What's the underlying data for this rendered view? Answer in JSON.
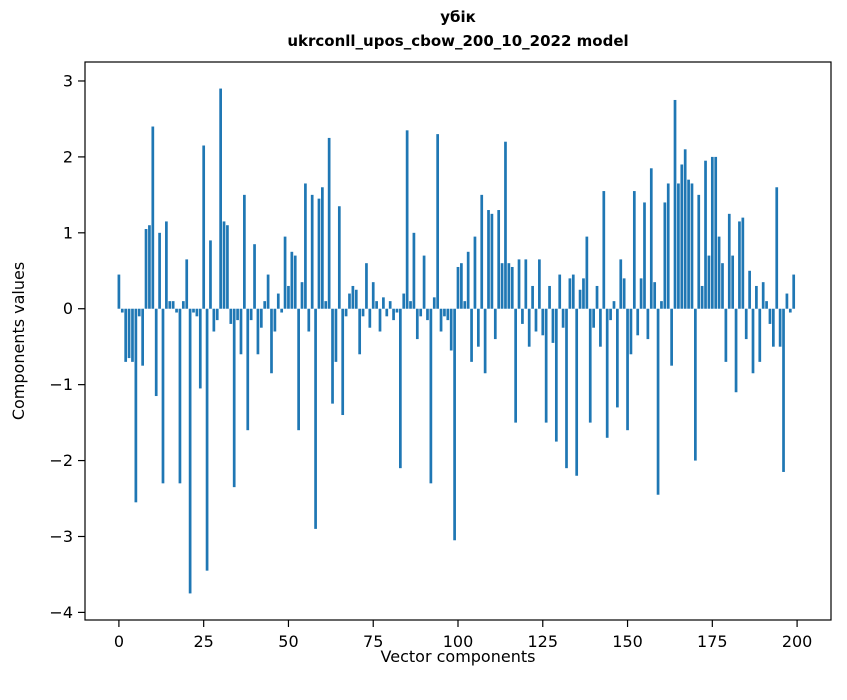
{
  "chart_data": {
    "type": "bar",
    "title": "убік",
    "subtitle": "ukrconll_upos_cbow_200_10_2022 model",
    "xlabel": "Vector components",
    "ylabel": "Components values",
    "x_description": "vector component index, implicit 0..199",
    "xlim": [
      -10,
      210
    ],
    "ylim": [
      -4.1,
      3.25
    ],
    "xticks": [
      0,
      25,
      50,
      75,
      100,
      125,
      150,
      175,
      200
    ],
    "yticks": [
      -4,
      -3,
      -2,
      -1,
      0,
      1,
      2,
      3
    ],
    "bar_color": "#1f77b4",
    "grid": false,
    "legend": null,
    "values": [
      0.45,
      -0.05,
      -0.7,
      -0.65,
      -0.7,
      -2.55,
      -0.1,
      -0.75,
      1.05,
      1.1,
      2.4,
      -1.15,
      1.0,
      -2.3,
      1.15,
      0.1,
      0.1,
      -0.05,
      -2.3,
      0.1,
      0.65,
      -3.75,
      -0.05,
      -0.1,
      -1.05,
      2.15,
      -3.45,
      0.9,
      -0.3,
      -0.15,
      2.9,
      1.15,
      1.1,
      -0.2,
      -2.35,
      -0.15,
      -0.6,
      1.5,
      -1.6,
      -0.15,
      0.85,
      -0.6,
      -0.25,
      0.1,
      0.45,
      -0.85,
      -0.3,
      0.2,
      -0.05,
      0.95,
      0.3,
      0.75,
      0.7,
      -1.6,
      0.35,
      1.65,
      -0.3,
      1.5,
      -2.9,
      1.45,
      1.6,
      0.1,
      2.25,
      -1.25,
      -0.7,
      1.35,
      -1.4,
      -0.1,
      0.2,
      0.3,
      0.25,
      -0.6,
      -0.1,
      0.6,
      -0.25,
      0.35,
      0.1,
      -0.3,
      0.15,
      -0.1,
      0.1,
      -0.15,
      -0.05,
      -2.1,
      0.2,
      2.35,
      0.1,
      1.0,
      -0.4,
      -0.1,
      0.7,
      -0.15,
      -2.3,
      0.15,
      2.3,
      -0.3,
      -0.1,
      -0.15,
      -0.55,
      -3.05,
      0.55,
      0.6,
      0.1,
      0.75,
      -0.7,
      0.95,
      -0.5,
      1.5,
      -0.85,
      1.3,
      1.25,
      -0.4,
      1.3,
      0.6,
      2.2,
      0.6,
      0.55,
      -1.5,
      0.65,
      -0.2,
      0.65,
      -0.5,
      0.3,
      -0.3,
      0.65,
      -0.35,
      -1.5,
      0.3,
      -0.45,
      -1.75,
      0.45,
      -0.25,
      -2.1,
      0.4,
      0.45,
      -2.2,
      0.25,
      0.4,
      0.95,
      -1.5,
      -0.25,
      0.3,
      -0.5,
      1.55,
      -1.7,
      -0.15,
      0.1,
      -1.3,
      0.65,
      0.4,
      -1.6,
      -0.6,
      1.55,
      -0.35,
      0.4,
      1.4,
      -0.4,
      1.85,
      0.35,
      -2.45,
      0.1,
      1.4,
      1.65,
      -0.75,
      2.75,
      1.65,
      1.9,
      2.1,
      1.7,
      1.65,
      -2.0,
      1.5,
      0.3,
      1.95,
      0.7,
      2.0,
      2.0,
      0.95,
      0.6,
      -0.7,
      1.25,
      0.7,
      -1.1,
      1.15,
      1.2,
      -0.4,
      0.5,
      -0.85,
      0.3,
      -0.7,
      0.35,
      0.1,
      -0.2,
      -0.5,
      1.6,
      -0.5,
      -2.15,
      0.2,
      -0.05,
      0.45
    ]
  }
}
